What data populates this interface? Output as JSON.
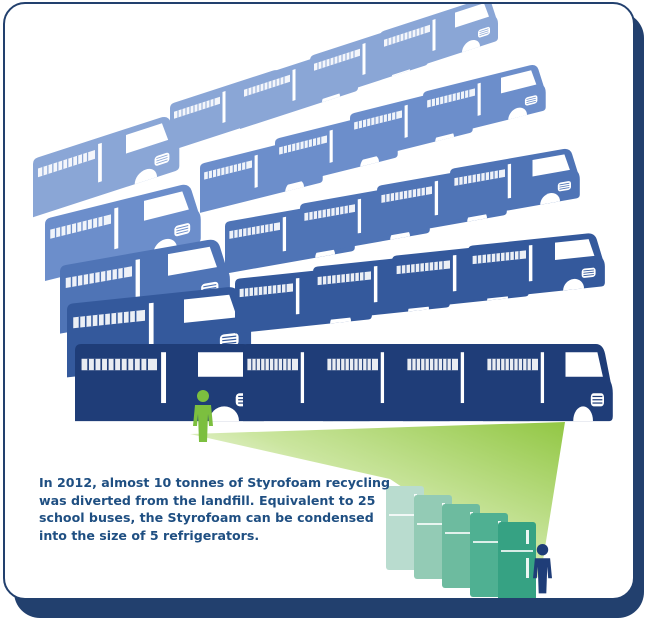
{
  "caption": "In 2012, almost 10 tonnes of Styrofoam recycling was diverted from the landfill. Equivalent to 25 school buses, the Styrofoam can be condensed into the size of 5 refrigerators.",
  "counts": {
    "school_buses": 25,
    "refrigerators": 5
  },
  "icons": {
    "bus": "school-bus-icon",
    "person": "person-icon",
    "fridge": "refrigerator-icon"
  },
  "colors": {
    "frame": "#22406e",
    "text": "#1f4f82",
    "bus_dark": "#1f3d78",
    "bus_light": "#8aa6d6",
    "person": "#7cbf3f",
    "fridge": "#3fae8f",
    "beam": "#a6d35c"
  }
}
